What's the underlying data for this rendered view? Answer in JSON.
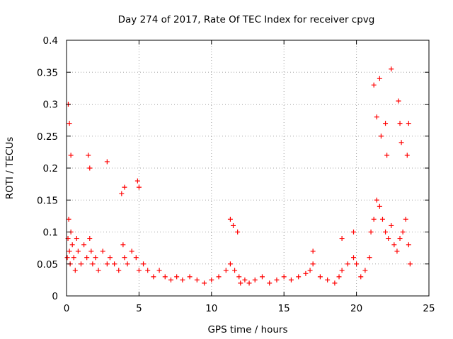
{
  "chart_data": {
    "type": "scatter",
    "title": "Day 274 of 2017, Rate Of TEC Index for receiver cpvg",
    "xlabel": "GPS time / hours",
    "ylabel": "ROTI / TECUs",
    "xlim": [
      0,
      25
    ],
    "ylim": [
      0,
      0.4
    ],
    "xticks": [
      "0",
      "5",
      "10",
      "15",
      "20",
      "25"
    ],
    "yticks": [
      "0",
      "0.05",
      "0.1",
      "0.15",
      "0.2",
      "0.25",
      "0.3",
      "0.35",
      "0.4"
    ],
    "grid": true,
    "marker": "+",
    "color": "#ff0000",
    "series": [
      {
        "x": [
          0.05,
          0.1,
          0.15,
          0.2,
          0.25,
          0.3,
          0.4,
          0.5,
          0.6,
          0.7,
          0.8,
          1.0,
          1.2,
          1.4,
          1.6,
          1.7,
          1.8,
          2.0,
          2.2,
          2.5,
          2.8,
          3.0,
          3.3,
          3.6,
          3.9,
          4.0,
          4.2,
          4.5,
          4.8,
          5.0,
          5.3,
          5.6,
          6.0,
          6.4,
          6.8,
          7.2,
          7.6,
          8.0,
          8.5,
          9.0,
          9.5,
          10.0,
          10.5,
          11.0,
          11.3,
          11.6,
          11.9,
          12.0,
          12.3,
          12.6,
          13.0,
          13.5,
          14.0,
          14.5,
          15.0,
          15.5,
          16.0,
          16.5,
          16.8,
          17.0,
          17.5,
          18.0,
          18.5,
          18.8,
          19.0,
          19.4,
          19.8,
          20.0,
          20.3,
          20.6,
          20.9,
          21.0,
          21.2,
          21.4,
          21.6,
          21.8,
          22.0,
          22.2,
          22.4,
          22.6,
          22.8,
          23.0,
          23.2,
          23.4,
          23.6,
          23.7,
          0.12,
          0.2,
          0.3,
          1.5,
          1.6,
          2.8,
          3.8,
          4.0,
          4.9,
          5.0,
          11.3,
          11.5,
          11.8,
          17.0,
          19.0,
          19.8,
          21.2,
          21.4,
          21.6,
          21.7,
          22.0,
          22.1,
          22.4,
          22.9,
          23.0,
          23.1,
          23.5,
          23.6
        ],
        "y": [
          0.06,
          0.09,
          0.12,
          0.07,
          0.05,
          0.1,
          0.08,
          0.06,
          0.04,
          0.09,
          0.07,
          0.05,
          0.08,
          0.06,
          0.09,
          0.07,
          0.05,
          0.06,
          0.04,
          0.07,
          0.05,
          0.06,
          0.05,
          0.04,
          0.08,
          0.06,
          0.05,
          0.07,
          0.06,
          0.04,
          0.05,
          0.04,
          0.03,
          0.04,
          0.03,
          0.025,
          0.03,
          0.025,
          0.03,
          0.025,
          0.02,
          0.025,
          0.03,
          0.04,
          0.05,
          0.04,
          0.03,
          0.02,
          0.025,
          0.02,
          0.025,
          0.03,
          0.02,
          0.025,
          0.03,
          0.025,
          0.03,
          0.035,
          0.04,
          0.05,
          0.03,
          0.025,
          0.02,
          0.03,
          0.04,
          0.05,
          0.06,
          0.05,
          0.03,
          0.04,
          0.06,
          0.1,
          0.12,
          0.15,
          0.14,
          0.12,
          0.1,
          0.09,
          0.11,
          0.08,
          0.07,
          0.09,
          0.1,
          0.12,
          0.08,
          0.05,
          0.3,
          0.27,
          0.22,
          0.22,
          0.2,
          0.21,
          0.16,
          0.17,
          0.18,
          0.17,
          0.12,
          0.11,
          0.1,
          0.07,
          0.09,
          0.1,
          0.33,
          0.28,
          0.34,
          0.25,
          0.27,
          0.22,
          0.355,
          0.305,
          0.27,
          0.24,
          0.22,
          0.27
        ]
      }
    ]
  }
}
